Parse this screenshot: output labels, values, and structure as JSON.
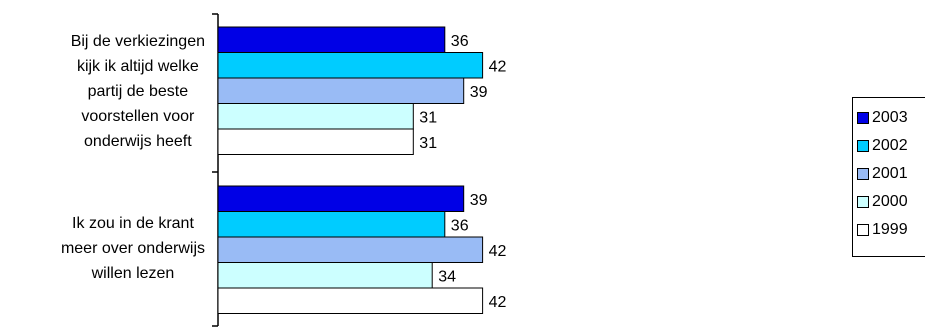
{
  "chart_data": {
    "type": "bar",
    "orientation": "horizontal",
    "categories": [
      "Bij de verkiezingen kijk ik altijd welke partij de beste voorstellen voor onderwijs heeft",
      "Ik zou in de krant meer over onderwijs willen lezen"
    ],
    "category_lines": [
      [
        "Bij de verkiezingen",
        "kijk ik altijd welke",
        "partij de beste",
        "voorstellen voor",
        "onderwijs heeft"
      ],
      [
        "Ik zou in de krant",
        "meer over onderwijs",
        "willen lezen"
      ]
    ],
    "series": [
      {
        "name": "2003",
        "color": "#0000e6",
        "values": [
          36,
          39
        ]
      },
      {
        "name": "2002",
        "color": "#00ccff",
        "values": [
          42,
          36
        ]
      },
      {
        "name": "2001",
        "color": "#99bbf5",
        "values": [
          39,
          42
        ]
      },
      {
        "name": "2000",
        "color": "#ccffff",
        "values": [
          31,
          34
        ]
      },
      {
        "name": "1999",
        "color": "#ffffff",
        "values": [
          31,
          42
        ]
      }
    ],
    "data_labels": true,
    "legend_position": "right",
    "xlim": [
      0,
      100
    ],
    "grid": false
  }
}
